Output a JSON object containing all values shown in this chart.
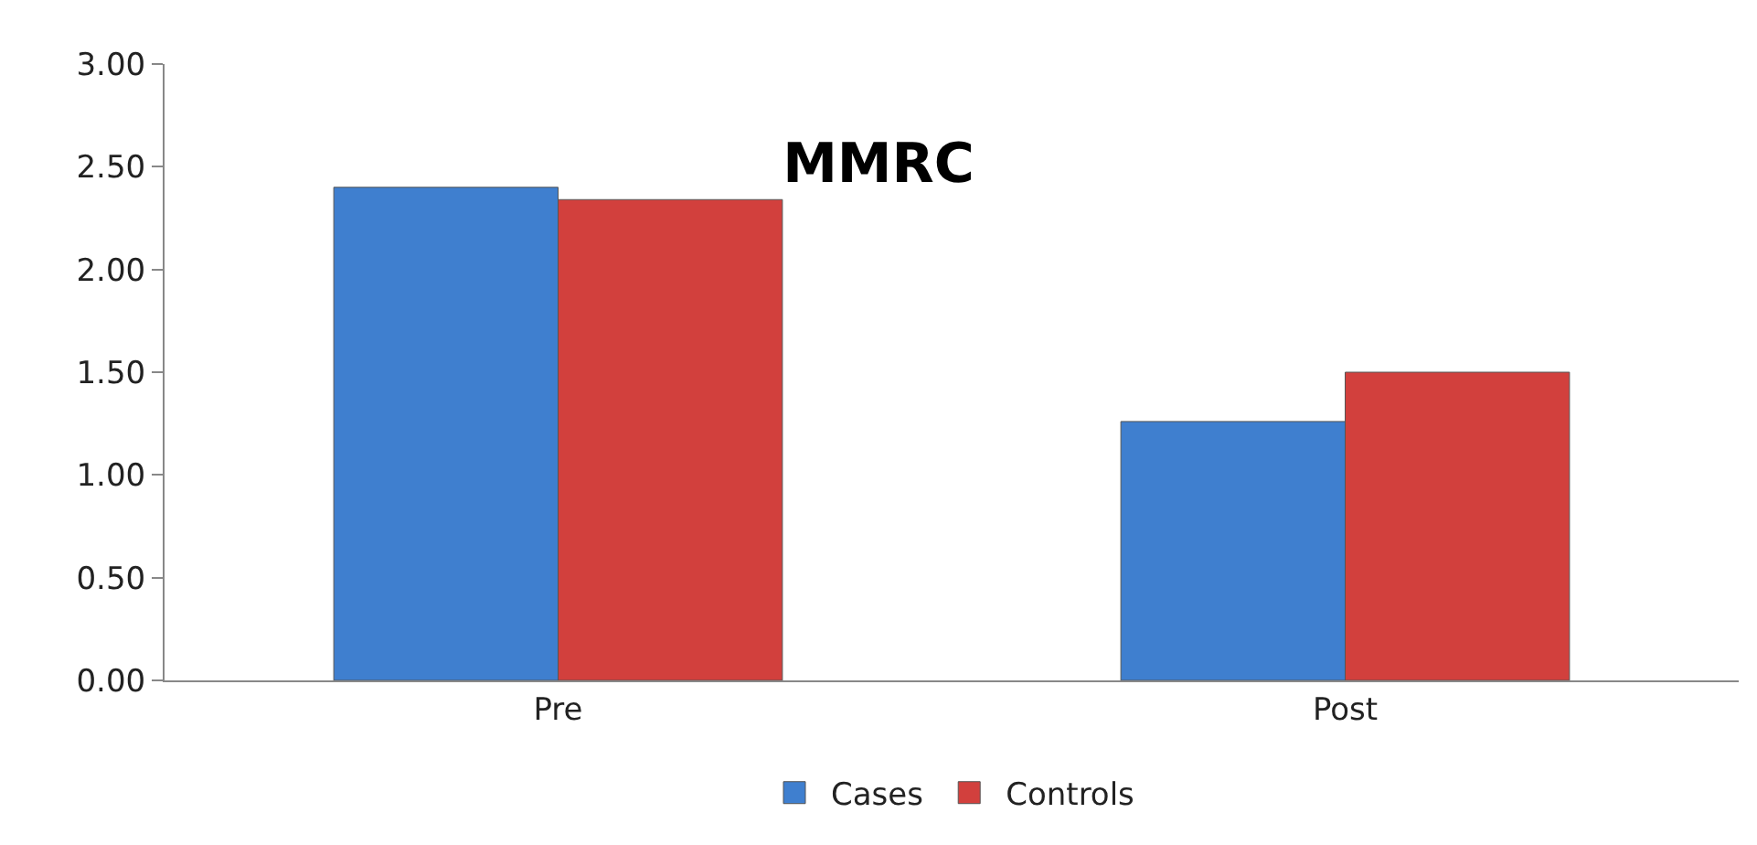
{
  "chart_data": {
    "type": "bar",
    "title": "MMRC",
    "categories": [
      "Pre",
      "Post"
    ],
    "series": [
      {
        "name": "Cases",
        "color": "#3f7fcf",
        "values": [
          2.4,
          1.26
        ]
      },
      {
        "name": "Controls",
        "color": "#d2403d",
        "values": [
          2.34,
          1.5
        ]
      }
    ],
    "ylim": [
      0,
      3
    ],
    "yticks": [
      {
        "value": 0,
        "label": "0.00"
      },
      {
        "value": 0.5,
        "label": "0.50"
      },
      {
        "value": 1,
        "label": "1.00"
      },
      {
        "value": 1.5,
        "label": "1.50"
      },
      {
        "value": 2,
        "label": "2.00"
      },
      {
        "value": 2.5,
        "label": "2.50"
      },
      {
        "value": 3,
        "label": "3.00"
      }
    ],
    "grid": false,
    "legend": "bottom"
  }
}
